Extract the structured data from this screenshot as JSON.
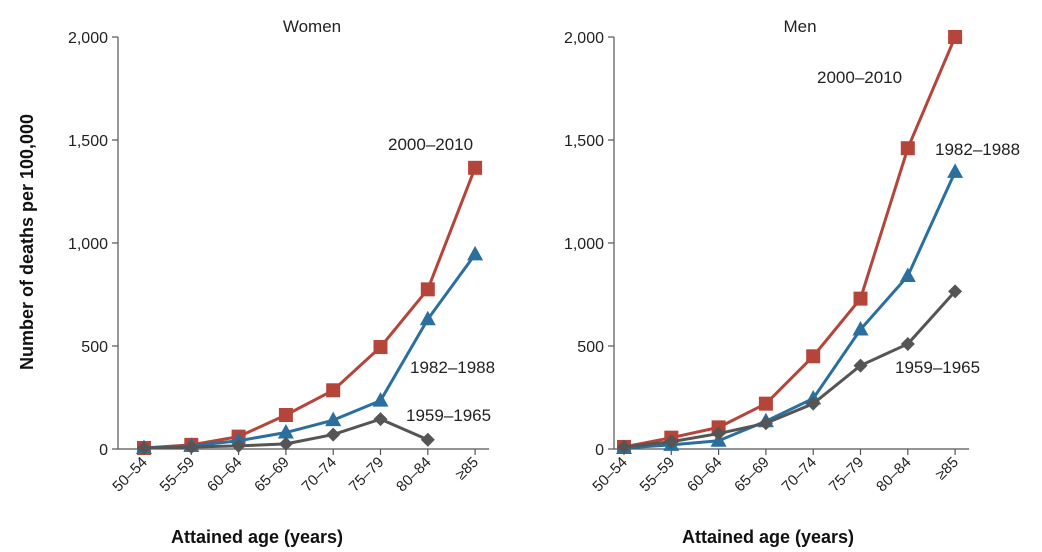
{
  "chart_data": [
    {
      "type": "line",
      "title": "Women",
      "xlabel": "Attained age (years)",
      "ylabel": "Number of deaths per 100,000",
      "categories": [
        "50–54",
        "55–59",
        "60–64",
        "65–69",
        "70–74",
        "75–79",
        "80–84",
        "≥85"
      ],
      "ylim": [
        0,
        2000
      ],
      "yticks": [
        0,
        500,
        1000,
        1500,
        2000
      ],
      "ytick_labels": [
        "0",
        "500",
        "1,000",
        "1,500",
        "2,000"
      ],
      "series": [
        {
          "name": "2000–2010",
          "marker": "square",
          "color": "#b5443a",
          "values": [
            5,
            20,
            60,
            165,
            285,
            495,
            775,
            1365
          ]
        },
        {
          "name": "1982–1988",
          "marker": "triangle",
          "color": "#2a6f9e",
          "values": [
            5,
            15,
            40,
            80,
            140,
            235,
            630,
            945
          ]
        },
        {
          "name": "1959–1965",
          "marker": "diamond",
          "color": "#555555",
          "values": [
            5,
            10,
            15,
            25,
            70,
            145,
            45,
            null
          ]
        }
      ]
    },
    {
      "type": "line",
      "title": "Men",
      "xlabel": "Attained age (years)",
      "ylabel": "",
      "categories": [
        "50–54",
        "55–59",
        "60–64",
        "65–69",
        "70–74",
        "75–79",
        "80–84",
        "≥85"
      ],
      "ylim": [
        0,
        2000
      ],
      "yticks": [
        0,
        500,
        1000,
        1500,
        2000
      ],
      "ytick_labels": [
        "0",
        "500",
        "1,000",
        "1,500",
        "2,000"
      ],
      "series": [
        {
          "name": "2000–2010",
          "marker": "square",
          "color": "#b5443a",
          "values": [
            10,
            55,
            105,
            220,
            450,
            730,
            1460,
            2000
          ]
        },
        {
          "name": "1982–1988",
          "marker": "triangle",
          "color": "#2a6f9e",
          "values": [
            5,
            20,
            40,
            135,
            245,
            580,
            840,
            1345
          ]
        },
        {
          "name": "1959–1965",
          "marker": "diamond",
          "color": "#555555",
          "values": [
            10,
            35,
            75,
            125,
            220,
            405,
            510,
            765
          ]
        }
      ]
    }
  ]
}
